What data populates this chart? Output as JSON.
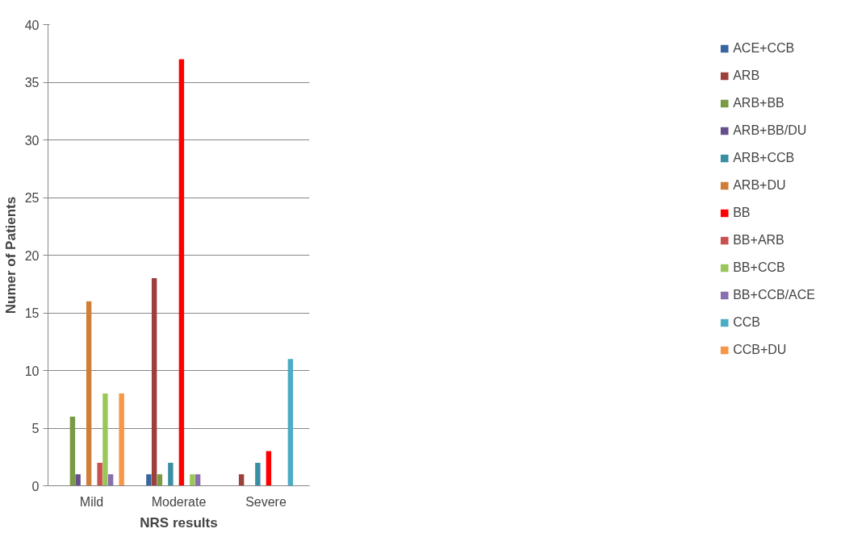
{
  "chart_data": {
    "type": "bar",
    "xlabel": "NRS results",
    "ylabel": "Numer of Patients",
    "categories": [
      "Mild",
      "Moderate",
      "Severe"
    ],
    "ylim": [
      0,
      40
    ],
    "yticks": [
      0,
      5,
      10,
      15,
      20,
      25,
      30,
      35,
      40
    ],
    "grid": "y",
    "legend": "right",
    "series": [
      {
        "name": "ACE+CCB",
        "color": "#3a64a0",
        "values": [
          0,
          1,
          0
        ]
      },
      {
        "name": "ARB",
        "color": "#9b403d",
        "values": [
          0,
          18,
          1
        ]
      },
      {
        "name": "ARB+BB",
        "color": "#7a9a44",
        "values": [
          6,
          1,
          0
        ]
      },
      {
        "name": "ARB+BB/DU",
        "color": "#664f8a",
        "values": [
          1,
          0,
          0
        ]
      },
      {
        "name": "ARB+CCB",
        "color": "#3a8ea3",
        "values": [
          0,
          2,
          2
        ]
      },
      {
        "name": "ARB+DU",
        "color": "#d07e37",
        "values": [
          16,
          0,
          0
        ]
      },
      {
        "name": "BB",
        "color": "#ff0000",
        "values": [
          0,
          37,
          3
        ]
      },
      {
        "name": "BB+ARB",
        "color": "#c9504e",
        "values": [
          2,
          0,
          0
        ]
      },
      {
        "name": "BB+CCB",
        "color": "#9bc75a",
        "values": [
          8,
          1,
          0
        ]
      },
      {
        "name": "BB+CCB/ACE",
        "color": "#8a6fb0",
        "values": [
          1,
          1,
          0
        ]
      },
      {
        "name": "CCB",
        "color": "#4bacc6",
        "values": [
          0,
          0,
          11
        ]
      },
      {
        "name": "CCB+DU",
        "color": "#f79646",
        "values": [
          8,
          0,
          0
        ]
      }
    ]
  }
}
